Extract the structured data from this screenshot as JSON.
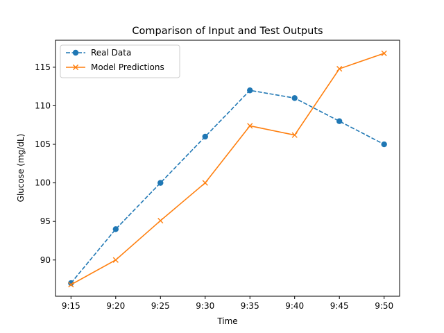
{
  "chart_data": {
    "type": "line",
    "title": "Comparison of Input and Test Outputs",
    "xlabel": "Time",
    "ylabel": "Glucose (mg/dL)",
    "categories": [
      "9:15",
      "9:20",
      "9:25",
      "9:30",
      "9:35",
      "9:40",
      "9:45",
      "9:50"
    ],
    "ylim": [
      85.3,
      118.5
    ],
    "yticks": [
      90,
      95,
      100,
      105,
      110,
      115
    ],
    "grid": false,
    "legend_position": "top-left",
    "series": [
      {
        "name": "Real Data",
        "values": [
          87,
          94,
          100,
          106,
          112,
          111,
          108,
          105
        ],
        "color": "#1f77b4",
        "line_style": "dashed",
        "marker": "circle"
      },
      {
        "name": "Model Predictions",
        "values": [
          86.8,
          90,
          95.1,
          100,
          107.4,
          106.2,
          114.8,
          116.8
        ],
        "color": "#ff7f0e",
        "line_style": "solid",
        "marker": "x"
      }
    ]
  }
}
